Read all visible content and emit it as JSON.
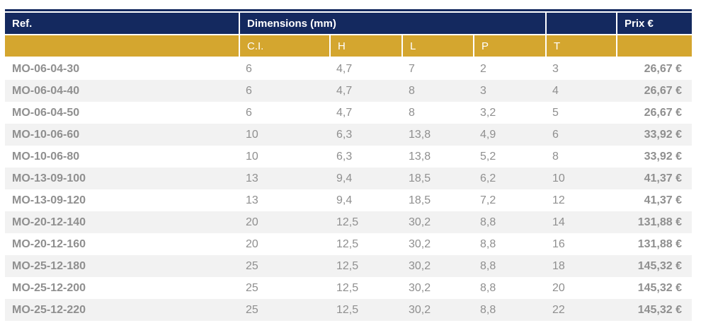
{
  "colors": {
    "header_navy": "#14295f",
    "header_gold": "#d4a62f",
    "row_stripe": "#f2f2f2",
    "value_text": "#8f8f8f",
    "bold_text": "#868686"
  },
  "table": {
    "header": {
      "ref": "Ref.",
      "dimensions": "Dimensions (mm)",
      "empty": "",
      "prix": "Prix €"
    },
    "subheader": {
      "ci": "C.I.",
      "h": "H",
      "l": "L",
      "p": "P",
      "t": "T"
    },
    "rows": [
      {
        "ref": "MO-06-04-30",
        "ci": "6",
        "h": "4,7",
        "l": "7",
        "p": "2",
        "t": "3",
        "prix": "26,67 €"
      },
      {
        "ref": "MO-06-04-40",
        "ci": "6",
        "h": "4,7",
        "l": "8",
        "p": "3",
        "t": "4",
        "prix": "26,67 €"
      },
      {
        "ref": "MO-06-04-50",
        "ci": "6",
        "h": "4,7",
        "l": "8",
        "p": "3,2",
        "t": "5",
        "prix": "26,67 €"
      },
      {
        "ref": "MO-10-06-60",
        "ci": "10",
        "h": "6,3",
        "l": "13,8",
        "p": "4,9",
        "t": "6",
        "prix": "33,92 €"
      },
      {
        "ref": "MO-10-06-80",
        "ci": "10",
        "h": "6,3",
        "l": "13,8",
        "p": "5,2",
        "t": "8",
        "prix": "33,92 €"
      },
      {
        "ref": "MO-13-09-100",
        "ci": "13",
        "h": "9,4",
        "l": "18,5",
        "p": "6,2",
        "t": "10",
        "prix": "41,37 €"
      },
      {
        "ref": "MO-13-09-120",
        "ci": "13",
        "h": "9,4",
        "l": "18,5",
        "p": "7,2",
        "t": "12",
        "prix": "41,37 €"
      },
      {
        "ref": "MO-20-12-140",
        "ci": "20",
        "h": "12,5",
        "l": "30,2",
        "p": "8,8",
        "t": "14",
        "prix": "131,88 €"
      },
      {
        "ref": "MO-20-12-160",
        "ci": "20",
        "h": "12,5",
        "l": "30,2",
        "p": "8,8",
        "t": "16",
        "prix": "131,88 €"
      },
      {
        "ref": "MO-25-12-180",
        "ci": "25",
        "h": "12,5",
        "l": "30,2",
        "p": "8,8",
        "t": "18",
        "prix": "145,32 €"
      },
      {
        "ref": "MO-25-12-200",
        "ci": "25",
        "h": "12,5",
        "l": "30,2",
        "p": "8,8",
        "t": "20",
        "prix": "145,32 €"
      },
      {
        "ref": "MO-25-12-220",
        "ci": "25",
        "h": "12,5",
        "l": "30,2",
        "p": "8,8",
        "t": "22",
        "prix": "145,32 €"
      }
    ]
  }
}
